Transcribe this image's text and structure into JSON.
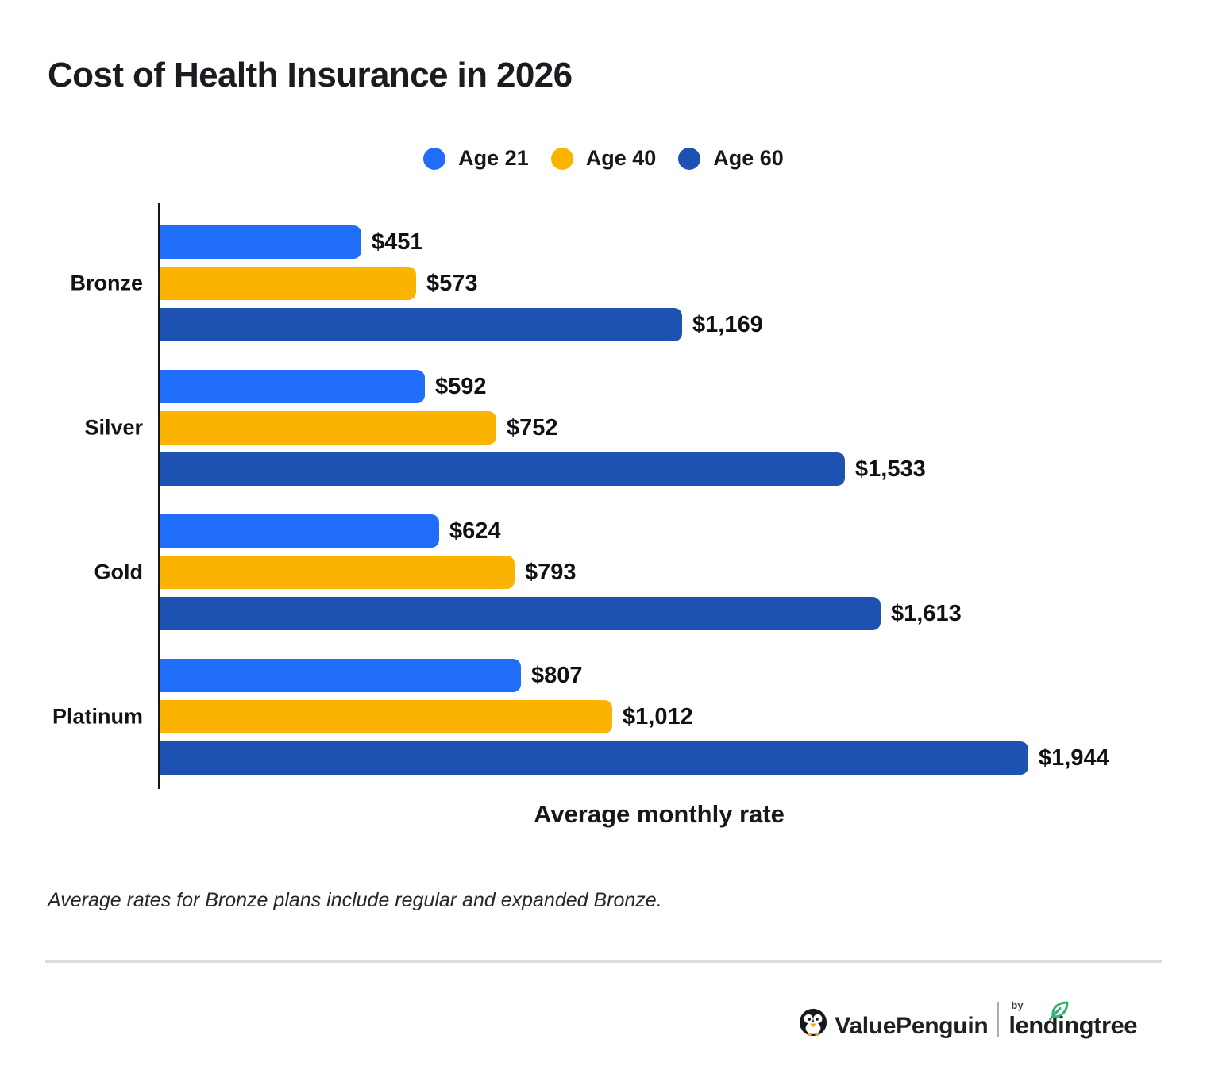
{
  "title": "Cost of Health Insurance in 2026",
  "legend": {
    "items": [
      {
        "label": "Age 21",
        "color": "#1F6DF9"
      },
      {
        "label": "Age 40",
        "color": "#FAB400"
      },
      {
        "label": "Age 60",
        "color": "#1D52B3"
      }
    ]
  },
  "chart_data": {
    "type": "bar",
    "orientation": "horizontal",
    "title": "Cost of Health Insurance in 2026",
    "xlabel": "Average monthly rate",
    "ylabel": "",
    "categories": [
      "Bronze",
      "Silver",
      "Gold",
      "Platinum"
    ],
    "series": [
      {
        "name": "Age 21",
        "color": "#1F6DF9",
        "values": [
          451,
          592,
          624,
          807
        ],
        "labels": [
          "$451",
          "$592",
          "$624",
          "$807"
        ]
      },
      {
        "name": "Age 40",
        "color": "#FAB400",
        "values": [
          573,
          752,
          793,
          1012
        ],
        "labels": [
          "$573",
          "$752",
          "$793",
          "$1,012"
        ]
      },
      {
        "name": "Age 60",
        "color": "#1D52B3",
        "values": [
          1169,
          1533,
          1613,
          1944
        ],
        "labels": [
          "$1,169",
          "$1,533",
          "$1,613",
          "$1,944"
        ]
      }
    ],
    "xlim": [
      0,
      2000
    ],
    "grid": false,
    "legend_position": "top-center",
    "value_labels": true
  },
  "footnote": "Average rates for Bronze plans include regular and expanded Bronze.",
  "footer": {
    "brand": "ValuePenguin",
    "by": "by",
    "partner": "lendingtree"
  }
}
